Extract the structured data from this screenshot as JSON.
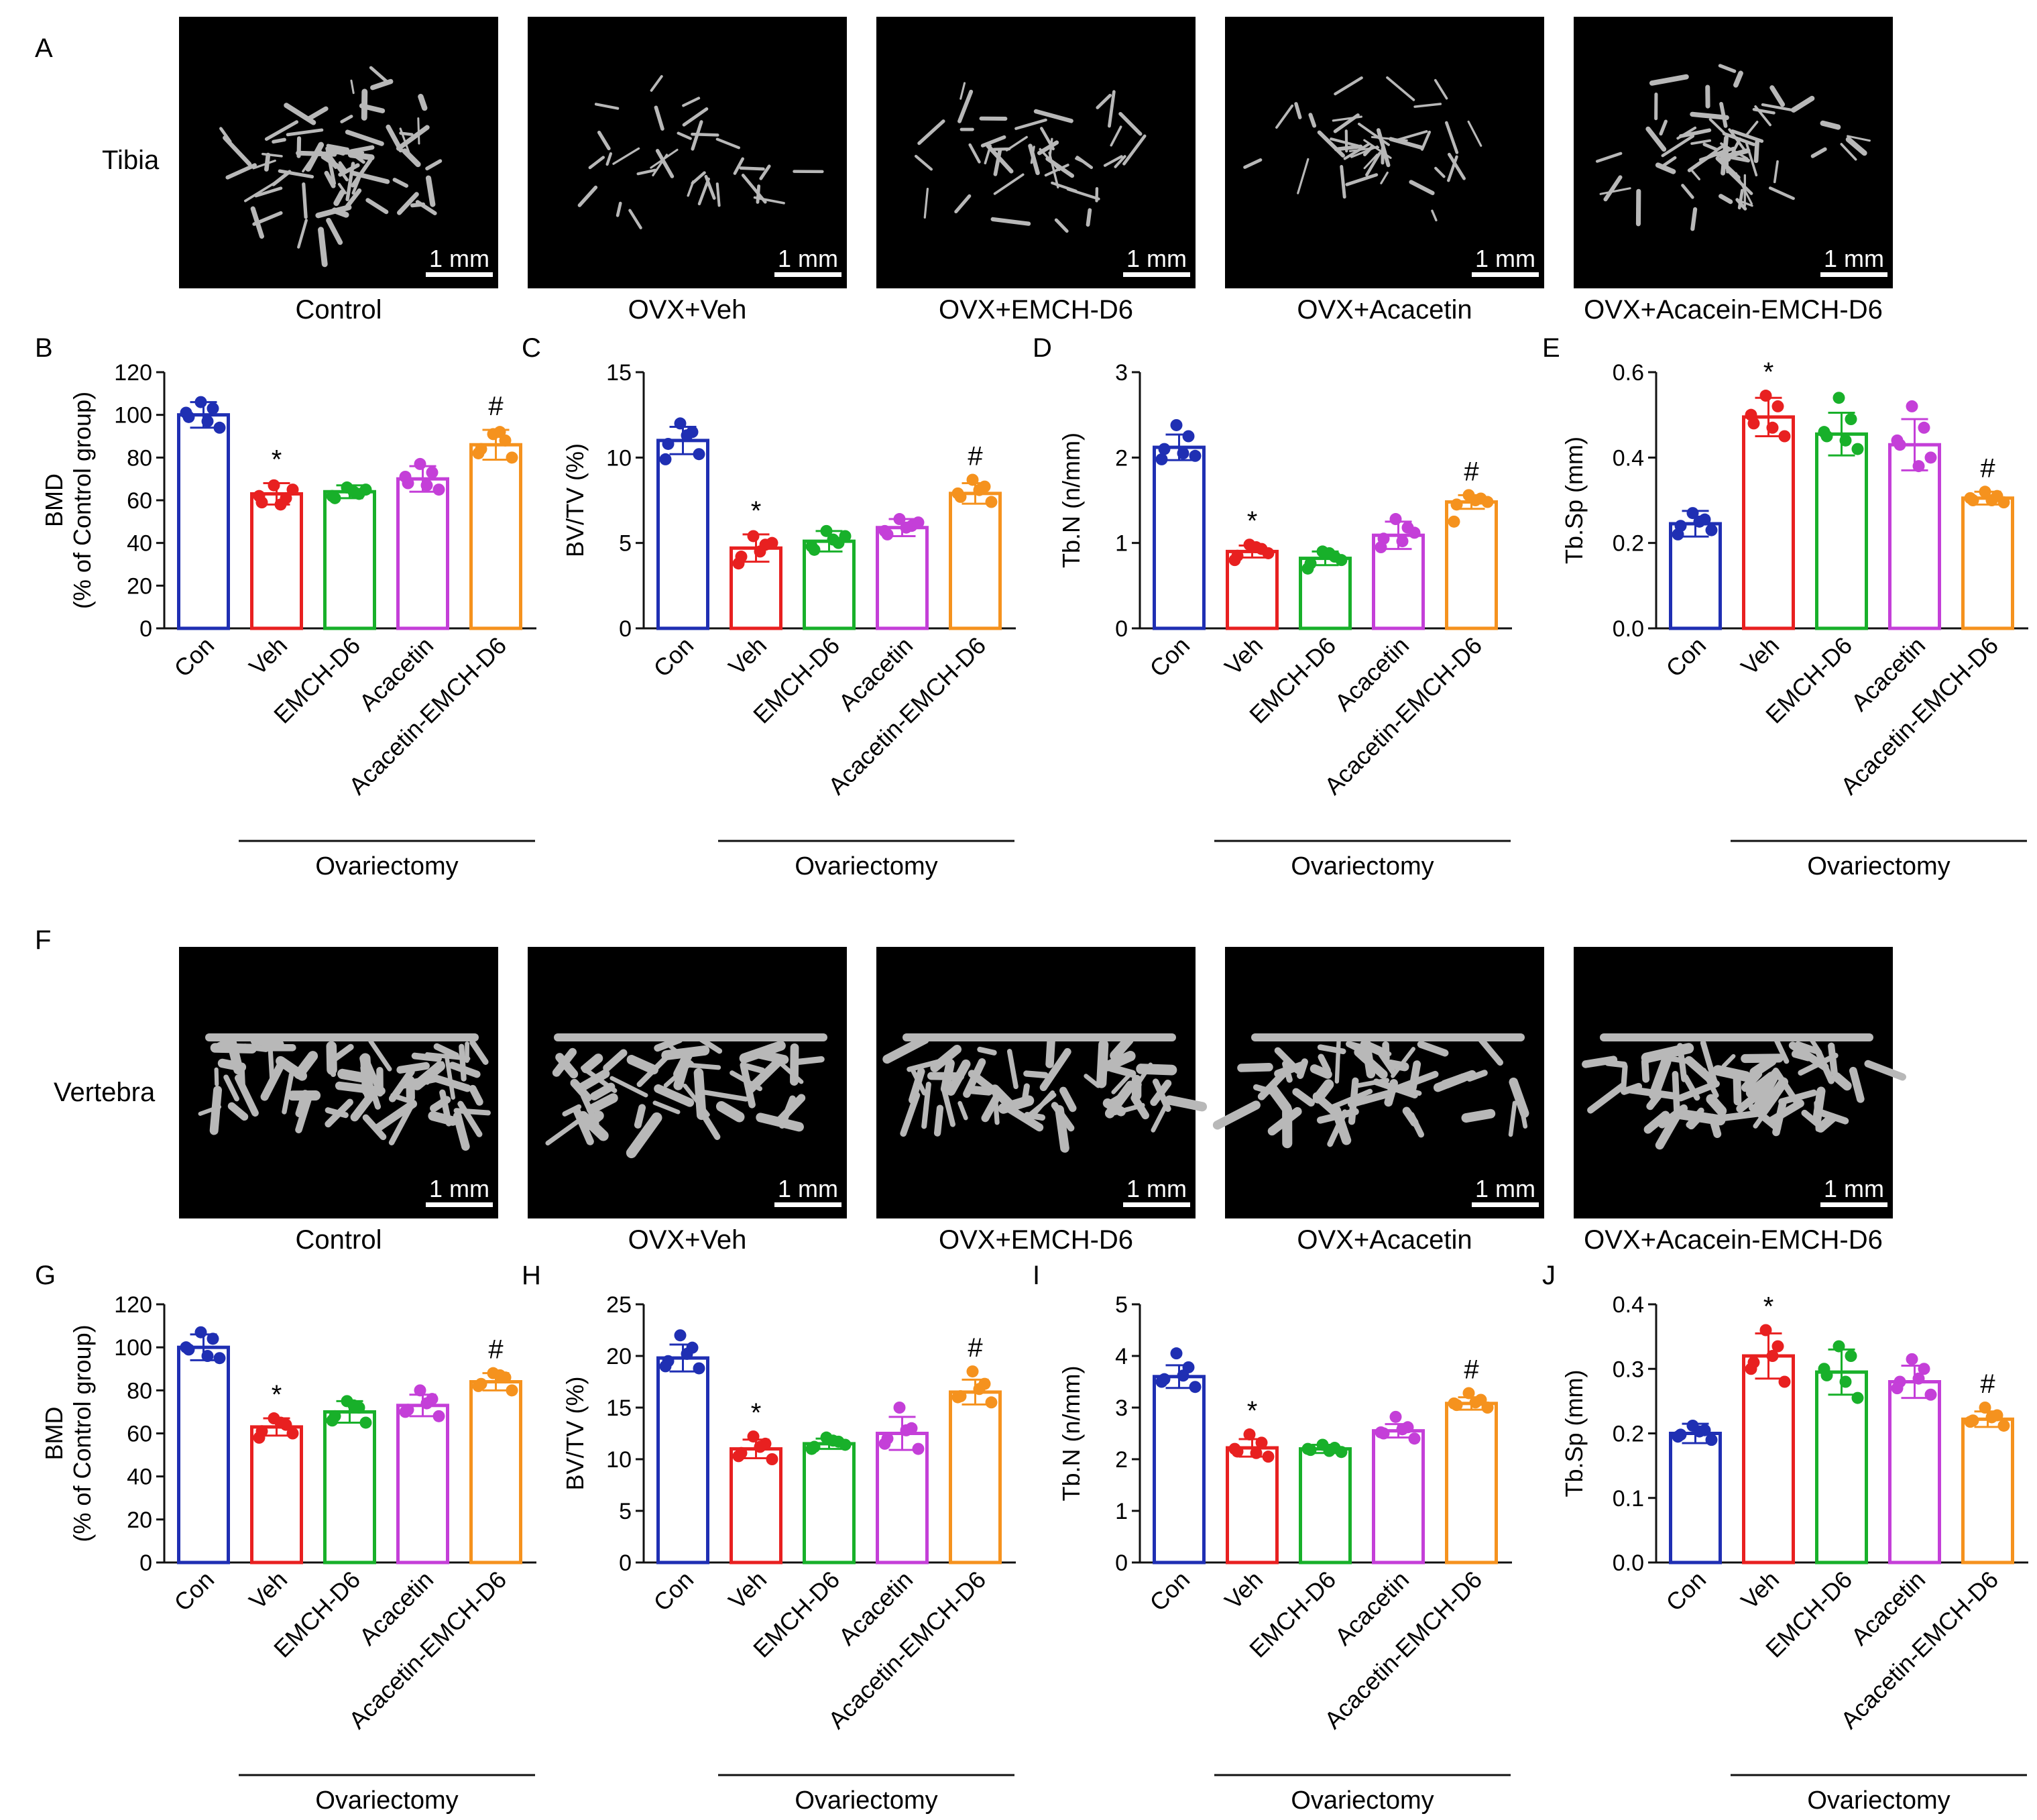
{
  "panel_letters": {
    "top_images": "A",
    "bottom_images": "F"
  },
  "row_labels": {
    "tibia": "Tibia",
    "vertebra": "Vertebra"
  },
  "image_captions": [
    "Control",
    "OVX+Veh",
    "OVX+EMCH-D6",
    "OVX+Acacetin",
    "OVX+Acacein-EMCH-D6"
  ],
  "scale_bar": "1 mm",
  "group_underline_label": "Ovariectomy",
  "colors": {
    "Con": "#1f2fb3",
    "Veh": "#e82020",
    "EMCH-D6": "#18b02a",
    "Acacetin": "#c43fd8",
    "Acacetin-EMCH-D6": "#f5921e",
    "image_background": "#000000",
    "bone": "#b8b8b8"
  },
  "chart_data": [
    {
      "letter": "B",
      "type": "bar",
      "ylabel": "BMD (% of Control group)",
      "yticks": [
        "0",
        "20",
        "40",
        "60",
        "80",
        "100",
        "120"
      ],
      "ylim": [
        0,
        120
      ],
      "categories": [
        "Con",
        "Veh",
        "EMCH-D6",
        "Acacetin",
        "Acacetin-EMCH-D6"
      ],
      "values": [
        100,
        63,
        64,
        70,
        86
      ],
      "errors": [
        6,
        5,
        3,
        6,
        7
      ],
      "points": [
        [
          106,
          103,
          99,
          94,
          101,
          97
        ],
        [
          67,
          61,
          59,
          65,
          62,
          58
        ],
        [
          66,
          63,
          61,
          65,
          62,
          64
        ],
        [
          77,
          73,
          68,
          65,
          71,
          67
        ],
        [
          91,
          88,
          84,
          80,
          82,
          92
        ]
      ],
      "annotations": [
        {
          "category": "Veh",
          "text": "*"
        },
        {
          "category": "Acacetin-EMCH-D6",
          "text": "#"
        }
      ]
    },
    {
      "letter": "C",
      "type": "bar",
      "ylabel": "BV/TV (%)",
      "yticks": [
        "0",
        "5",
        "10",
        "15"
      ],
      "ylim": [
        0,
        15
      ],
      "categories": [
        "Con",
        "Veh",
        "EMCH-D6",
        "Acacetin",
        "Acacetin-EMCH-D6"
      ],
      "values": [
        11.0,
        4.7,
        5.1,
        5.9,
        7.9
      ],
      "errors": [
        0.8,
        0.8,
        0.6,
        0.5,
        0.6
      ],
      "points": [
        [
          12.0,
          11.5,
          10.8,
          10.2,
          9.9,
          11.3
        ],
        [
          5.4,
          4.9,
          4.2,
          5.0,
          3.8,
          4.5
        ],
        [
          5.7,
          5.0,
          4.6,
          5.4,
          4.8,
          5.2
        ],
        [
          6.4,
          6.0,
          5.5,
          6.2,
          5.7,
          5.9
        ],
        [
          8.7,
          8.3,
          7.7,
          7.4,
          7.9,
          8.1
        ]
      ],
      "annotations": [
        {
          "category": "Veh",
          "text": "*"
        },
        {
          "category": "Acacetin-EMCH-D6",
          "text": "#"
        }
      ]
    },
    {
      "letter": "D",
      "type": "bar",
      "ylabel": "Tb.N (n/mm)",
      "yticks": [
        "0",
        "1",
        "2",
        "3"
      ],
      "ylim": [
        0,
        3
      ],
      "categories": [
        "Con",
        "Veh",
        "EMCH-D6",
        "Acacetin",
        "Acacetin-EMCH-D6"
      ],
      "values": [
        2.12,
        0.9,
        0.82,
        1.09,
        1.48
      ],
      "errors": [
        0.15,
        0.07,
        0.08,
        0.16,
        0.08
      ],
      "points": [
        [
          2.38,
          2.25,
          2.1,
          2.02,
          1.98,
          2.05
        ],
        [
          0.98,
          0.93,
          0.85,
          0.88,
          0.8,
          0.95
        ],
        [
          0.9,
          0.84,
          0.76,
          0.8,
          0.7,
          0.88
        ],
        [
          1.28,
          1.18,
          1.05,
          1.12,
          0.95,
          1.02
        ],
        [
          1.56,
          1.52,
          1.45,
          1.48,
          1.25,
          1.5
        ]
      ],
      "annotations": [
        {
          "category": "Veh",
          "text": "*"
        },
        {
          "category": "Acacetin-EMCH-D6",
          "text": "#"
        }
      ]
    },
    {
      "letter": "E",
      "type": "bar",
      "ylabel": "Tb.Sp (mm)",
      "yticks": [
        "0.0",
        "0.2",
        "0.4",
        "0.6"
      ],
      "ylim": [
        0,
        0.6
      ],
      "categories": [
        "Con",
        "Veh",
        "EMCH-D6",
        "Acacetin",
        "Acacetin-EMCH-D6"
      ],
      "values": [
        0.245,
        0.495,
        0.455,
        0.43,
        0.305
      ],
      "errors": [
        0.03,
        0.045,
        0.05,
        0.06,
        0.015
      ],
      "points": [
        [
          0.27,
          0.255,
          0.24,
          0.23,
          0.22,
          0.25
        ],
        [
          0.545,
          0.52,
          0.48,
          0.45,
          0.5,
          0.47
        ],
        [
          0.54,
          0.49,
          0.45,
          0.42,
          0.46,
          0.44
        ],
        [
          0.52,
          0.47,
          0.43,
          0.4,
          0.44,
          0.38
        ],
        [
          0.32,
          0.31,
          0.3,
          0.295,
          0.305,
          0.3
        ]
      ],
      "annotations": [
        {
          "category": "Veh",
          "text": "*"
        },
        {
          "category": "Acacetin-EMCH-D6",
          "text": "#"
        }
      ]
    },
    {
      "letter": "G",
      "type": "bar",
      "ylabel": "BMD (% of Control group)",
      "yticks": [
        "0",
        "20",
        "40",
        "60",
        "80",
        "100",
        "120"
      ],
      "ylim": [
        0,
        120
      ],
      "categories": [
        "Con",
        "Veh",
        "EMCH-D6",
        "Acacetin",
        "Acacetin-EMCH-D6"
      ],
      "values": [
        100,
        63,
        70,
        73,
        84
      ],
      "errors": [
        6,
        4,
        5,
        5,
        4
      ],
      "points": [
        [
          107,
          104,
          99,
          95,
          100,
          96
        ],
        [
          67,
          64,
          61,
          60,
          58,
          65
        ],
        [
          75,
          72,
          68,
          65,
          66,
          73
        ],
        [
          80,
          76,
          71,
          68,
          70,
          74
        ],
        [
          88,
          86,
          83,
          80,
          82,
          87
        ]
      ],
      "annotations": [
        {
          "category": "Veh",
          "text": "*"
        },
        {
          "category": "Acacetin-EMCH-D6",
          "text": "#"
        }
      ]
    },
    {
      "letter": "H",
      "type": "bar",
      "ylabel": "BV/TV (%)",
      "yticks": [
        "0",
        "5",
        "10",
        "15",
        "20",
        "25"
      ],
      "ylim": [
        0,
        25
      ],
      "categories": [
        "Con",
        "Veh",
        "EMCH-D6",
        "Acacetin",
        "Acacetin-EMCH-D6"
      ],
      "values": [
        19.8,
        11.0,
        11.5,
        12.5,
        16.5
      ],
      "errors": [
        1.3,
        0.9,
        0.5,
        1.6,
        1.2
      ],
      "points": [
        [
          22.0,
          20.8,
          19.5,
          18.8,
          19.0,
          20.2
        ],
        [
          12.2,
          11.5,
          10.6,
          10.0,
          10.3,
          11.2
        ],
        [
          12.1,
          11.7,
          11.2,
          11.4,
          11.0,
          11.8
        ],
        [
          15.0,
          13.0,
          12.0,
          11.0,
          11.5,
          12.8
        ],
        [
          18.5,
          17.3,
          16.1,
          15.5,
          16.0,
          16.8
        ]
      ],
      "annotations": [
        {
          "category": "Veh",
          "text": "*"
        },
        {
          "category": "Acacetin-EMCH-D6",
          "text": "#"
        }
      ]
    },
    {
      "letter": "I",
      "type": "bar",
      "ylabel": "Tb.N (n/mm)",
      "yticks": [
        "0",
        "1",
        "2",
        "3",
        "4",
        "5"
      ],
      "ylim": [
        0,
        5
      ],
      "categories": [
        "Con",
        "Veh",
        "EMCH-D6",
        "Acacetin",
        "Acacetin-EMCH-D6"
      ],
      "values": [
        3.6,
        2.22,
        2.2,
        2.55,
        3.08
      ],
      "errors": [
        0.22,
        0.17,
        0.08,
        0.13,
        0.12
      ],
      "points": [
        [
          4.05,
          3.78,
          3.55,
          3.4,
          3.5,
          3.62
        ],
        [
          2.48,
          2.32,
          2.15,
          2.05,
          2.2,
          2.12
        ],
        [
          2.28,
          2.22,
          2.18,
          2.14,
          2.2,
          2.16
        ],
        [
          2.82,
          2.62,
          2.5,
          2.4,
          2.52,
          2.58
        ],
        [
          3.28,
          3.15,
          3.05,
          3.0,
          3.08,
          3.1
        ]
      ],
      "annotations": [
        {
          "category": "Veh",
          "text": "*"
        },
        {
          "category": "Acacetin-EMCH-D6",
          "text": "#"
        }
      ]
    },
    {
      "letter": "J",
      "type": "bar",
      "ylabel": "Tb.Sp (mm)",
      "yticks": [
        "0.0",
        "0.1",
        "0.2",
        "0.3",
        "0.4"
      ],
      "ylim": [
        0,
        0.4
      ],
      "categories": [
        "Con",
        "Veh",
        "EMCH-D6",
        "Acacetin",
        "Acacetin-EMCH-D6"
      ],
      "values": [
        0.2,
        0.32,
        0.295,
        0.28,
        0.222
      ],
      "errors": [
        0.015,
        0.035,
        0.035,
        0.025,
        0.012
      ],
      "points": [
        [
          0.212,
          0.205,
          0.198,
          0.19,
          0.195,
          0.203
        ],
        [
          0.36,
          0.335,
          0.31,
          0.28,
          0.3,
          0.32
        ],
        [
          0.335,
          0.32,
          0.29,
          0.255,
          0.3,
          0.28
        ],
        [
          0.315,
          0.3,
          0.28,
          0.26,
          0.27,
          0.285
        ],
        [
          0.24,
          0.228,
          0.22,
          0.212,
          0.218,
          0.225
        ]
      ],
      "annotations": [
        {
          "category": "Veh",
          "text": "*"
        },
        {
          "category": "Acacetin-EMCH-D6",
          "text": "#"
        }
      ]
    }
  ]
}
